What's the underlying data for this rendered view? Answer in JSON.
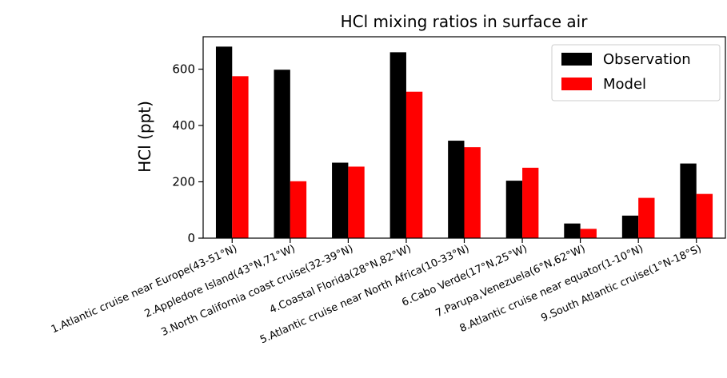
{
  "chart_data": {
    "type": "bar",
    "title": "HCl mixing ratios in surface air",
    "xlabel": "",
    "ylabel": "HCl (ppt)",
    "ylim": [
      0,
      715
    ],
    "yticks": [
      0,
      200,
      400,
      600
    ],
    "grid": false,
    "legend_position": "top-right",
    "categories": [
      "1.Atlantic cruise near Europe(43-51°N)",
      "2.Appledore Island(43°N,71°W)",
      "3.North California coast cruise(32-39°N)",
      "4.Coastal Florida(28°N,82°W)",
      "5.Atlantic cruise near North Africa(10-33°N)",
      "6.Cabo Verde(17°N,25°W)",
      "7.Parupa,Venezuela(6°N,62°W)",
      "8.Atlantic cruise near equator(1-10°N)",
      "9.South Atlantic cruise(1°N-18°S)"
    ],
    "series": [
      {
        "name": "Observation",
        "color": "#000000",
        "values": [
          680,
          598,
          268,
          660,
          346,
          204,
          52,
          80,
          265
        ]
      },
      {
        "name": "Model",
        "color": "#ff0000",
        "values": [
          575,
          202,
          254,
          520,
          323,
          250,
          33,
          143,
          157
        ]
      }
    ]
  }
}
